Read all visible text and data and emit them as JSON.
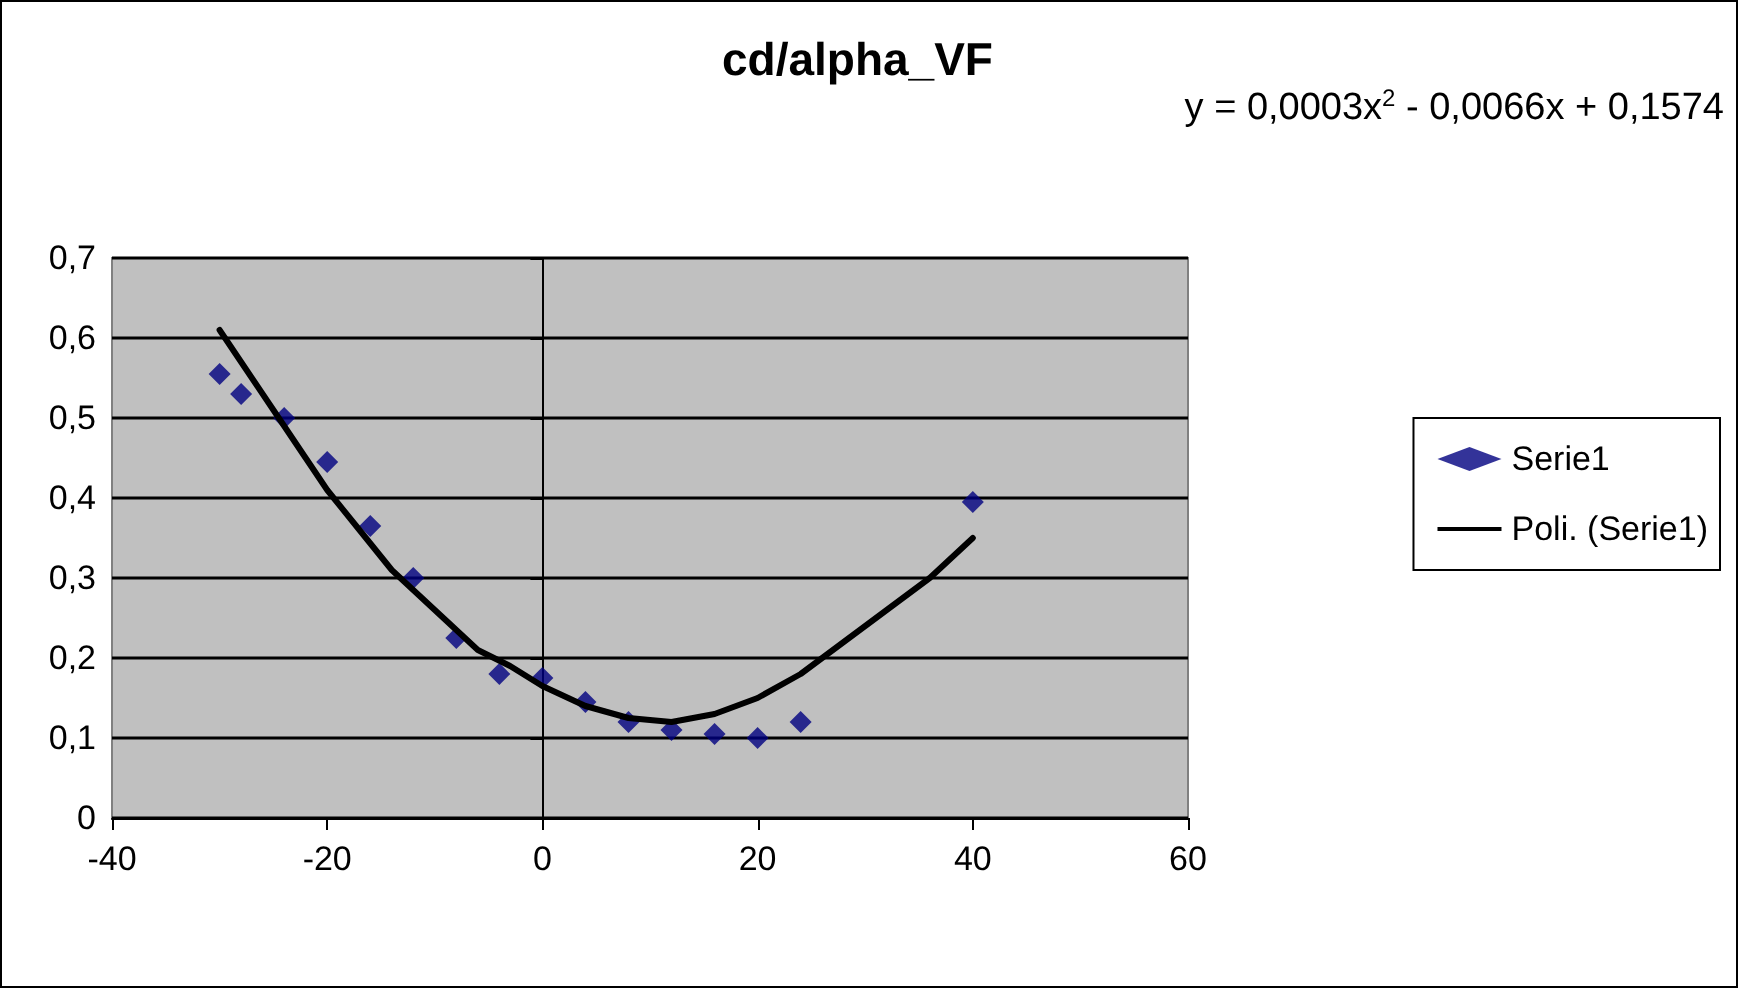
{
  "chart_data": {
    "type": "scatter",
    "title": "cd/alpha_VF",
    "annotations": [
      "y = 0,0003x$^{2}$ - 0,0066x + 0,1574"
    ],
    "series": [
      {
        "name": "Serie1",
        "color": "#000080",
        "marker": "diamond",
        "x": [
          -30,
          -28,
          -24,
          -20,
          -16,
          -12,
          -8,
          -4,
          0,
          4,
          8,
          12,
          16,
          20,
          24,
          40
        ],
        "values": [
          0.555,
          0.53,
          0.5,
          0.445,
          0.365,
          0.3,
          0.225,
          0.18,
          0.175,
          0.145,
          0.12,
          0.11,
          0.105,
          0.1,
          0.12,
          0.395
        ]
      },
      {
        "name": "Poli. (Serie1)",
        "type": "line",
        "color": "#000000",
        "marker": "none",
        "line_style": "solid",
        "x": [
          -30,
          -28,
          -25,
          -22,
          -20,
          -17,
          -14,
          -10,
          -6,
          -3,
          0,
          4,
          8,
          12,
          16,
          20,
          24,
          28,
          32,
          36,
          40
        ],
        "values": [
          0.61,
          0.57,
          0.51,
          0.45,
          0.41,
          0.36,
          0.31,
          0.26,
          0.21,
          0.19,
          0.165,
          0.14,
          0.125,
          0.12,
          0.13,
          0.15,
          0.18,
          0.22,
          0.26,
          0.3,
          0.35
        ]
      }
    ],
    "xlim": [
      -40,
      60
    ],
    "xticks": [
      -40,
      -20,
      0,
      20,
      40,
      60
    ],
    "ylim": [
      0,
      0.7
    ],
    "yticks": [
      {
        "value": 0,
        "label": "0"
      },
      {
        "value": 0.1,
        "label": "0,1"
      },
      {
        "value": 0.2,
        "label": "0,2"
      },
      {
        "value": 0.3,
        "label": "0,3"
      },
      {
        "value": 0.4,
        "label": "0,4"
      },
      {
        "value": 0.5,
        "label": "0,5"
      },
      {
        "value": 0.6,
        "label": "0,6"
      },
      {
        "value": 0.7,
        "label": "0,7"
      }
    ],
    "grid": "y",
    "legend": "right"
  }
}
